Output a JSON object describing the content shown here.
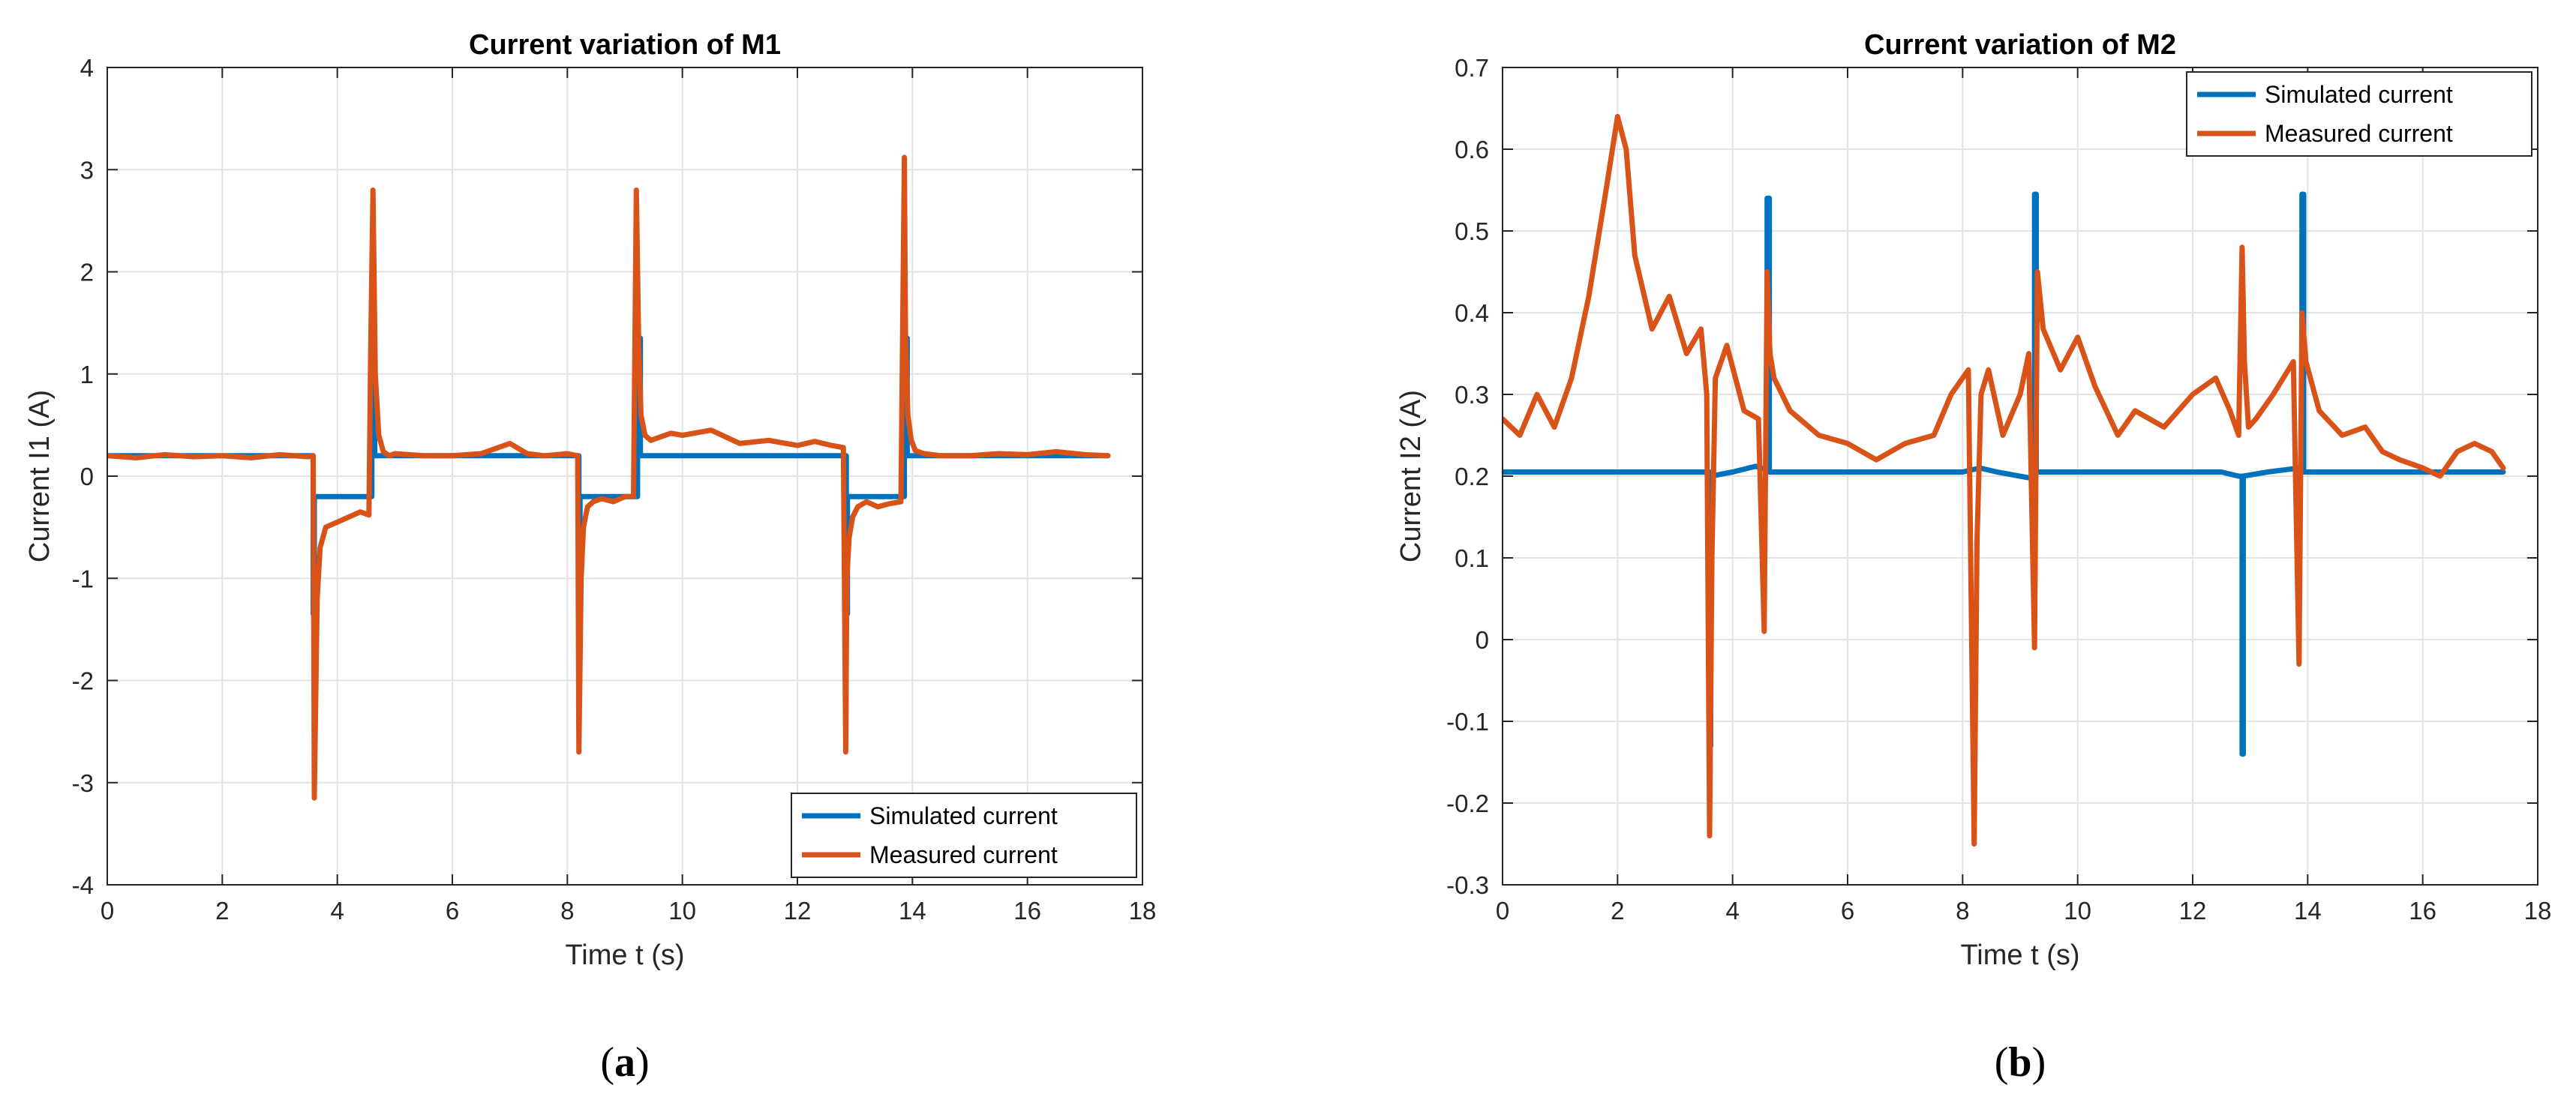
{
  "chart_data": [
    {
      "type": "line",
      "title": "Current variation of M1",
      "xlabel": "Time t (s)",
      "ylabel": "Current I1 (A)",
      "xlim": [
        0,
        18
      ],
      "ylim": [
        -4,
        4
      ],
      "xticks": [
        0,
        2,
        4,
        6,
        8,
        10,
        12,
        14,
        16,
        18
      ],
      "yticks": [
        -4,
        -3,
        -2,
        -1,
        0,
        1,
        2,
        3,
        4
      ],
      "grid": true,
      "legend_position": "bottom-right",
      "caption": "a",
      "series": [
        {
          "name": "Simulated current",
          "color": "#0072BD",
          "x": [
            0,
            3.58,
            3.58,
            3.6,
            3.6,
            4.6,
            4.6,
            4.63,
            4.65,
            4.65,
            8.2,
            8.2,
            8.22,
            8.22,
            9.22,
            9.22,
            9.25,
            9.27,
            9.27,
            12.85,
            12.85,
            12.87,
            12.87,
            13.86,
            13.86,
            13.89,
            13.91,
            13.91,
            17.4
          ],
          "y": [
            0.2,
            0.2,
            -1.35,
            -1.35,
            -0.2,
            -0.2,
            0.2,
            1.35,
            1.35,
            0.2,
            0.2,
            -1.35,
            -1.35,
            -0.2,
            -0.2,
            0.2,
            1.35,
            1.35,
            0.2,
            0.2,
            -1.35,
            -1.35,
            -0.2,
            -0.2,
            0.2,
            1.35,
            1.35,
            0.2,
            0.2
          ]
        },
        {
          "name": "Measured current",
          "color": "#D95319",
          "x": [
            0,
            0.5,
            1.0,
            1.5,
            2.0,
            2.5,
            3.0,
            3.5,
            3.58,
            3.6,
            3.65,
            3.7,
            3.8,
            4.0,
            4.2,
            4.4,
            4.55,
            4.58,
            4.62,
            4.66,
            4.72,
            4.8,
            4.9,
            5.0,
            5.5,
            6.0,
            6.5,
            7.0,
            7.3,
            7.6,
            8.0,
            8.18,
            8.2,
            8.24,
            8.28,
            8.35,
            8.45,
            8.6,
            8.8,
            9.0,
            9.15,
            9.2,
            9.24,
            9.28,
            9.35,
            9.45,
            9.6,
            9.8,
            10.0,
            10.5,
            11.0,
            11.5,
            12.0,
            12.3,
            12.6,
            12.8,
            12.84,
            12.86,
            12.9,
            12.96,
            13.05,
            13.2,
            13.4,
            13.6,
            13.8,
            13.86,
            13.88,
            13.92,
            13.98,
            14.05,
            14.2,
            14.5,
            15.0,
            15.5,
            16.0,
            16.5,
            17.0,
            17.4
          ],
          "y": [
            0.2,
            0.18,
            0.21,
            0.19,
            0.2,
            0.18,
            0.21,
            0.19,
            0.2,
            -3.15,
            -1.2,
            -0.7,
            -0.5,
            -0.45,
            -0.4,
            -0.35,
            -0.38,
            1.2,
            2.8,
            1.0,
            0.4,
            0.24,
            0.2,
            0.22,
            0.2,
            0.2,
            0.22,
            0.32,
            0.22,
            0.2,
            0.22,
            0.2,
            -2.7,
            -1.0,
            -0.5,
            -0.3,
            -0.25,
            -0.22,
            -0.25,
            -0.2,
            -0.2,
            2.8,
            1.3,
            0.6,
            0.4,
            0.35,
            0.38,
            0.42,
            0.4,
            0.45,
            0.32,
            0.35,
            0.3,
            0.34,
            0.3,
            0.28,
            -2.7,
            -1.0,
            -0.6,
            -0.4,
            -0.3,
            -0.25,
            -0.3,
            -0.27,
            -0.25,
            3.12,
            1.4,
            0.6,
            0.35,
            0.25,
            0.22,
            0.2,
            0.2,
            0.22,
            0.21,
            0.24,
            0.21,
            0.2
          ]
        }
      ]
    },
    {
      "type": "line",
      "title": "Current variation of M2",
      "xlabel": "Time t (s)",
      "ylabel": "Current I2 (A)",
      "xlim": [
        0,
        18
      ],
      "ylim": [
        -0.3,
        0.7
      ],
      "xticks": [
        0,
        2,
        4,
        6,
        8,
        10,
        12,
        14,
        16,
        18
      ],
      "yticks": [
        -0.3,
        -0.2,
        -0.1,
        0,
        0.1,
        0.2,
        0.3,
        0.4,
        0.5,
        0.6,
        0.7
      ],
      "grid": true,
      "legend_position": "top-right",
      "caption": "b",
      "series": [
        {
          "name": "Simulated current",
          "color": "#0072BD",
          "x": [
            0,
            3.55,
            3.6,
            3.6,
            3.62,
            3.62,
            4.0,
            4.4,
            4.58,
            4.6,
            4.6,
            4.64,
            4.64,
            4.7,
            8.0,
            8.3,
            8.6,
            9.15,
            9.25,
            9.25,
            9.28,
            9.28,
            9.35,
            12.5,
            12.8,
            12.86,
            12.86,
            12.88,
            12.88,
            13.3,
            13.85,
            13.9,
            13.9,
            13.93,
            13.93,
            14.0,
            17.4
          ],
          "y": [
            0.205,
            0.205,
            0.205,
            -0.13,
            -0.13,
            0.2,
            0.205,
            0.212,
            0.208,
            0.208,
            0.54,
            0.54,
            0.205,
            0.205,
            0.205,
            0.21,
            0.205,
            0.198,
            0.198,
            0.545,
            0.545,
            0.205,
            0.205,
            0.205,
            0.2,
            0.2,
            -0.14,
            -0.14,
            0.2,
            0.205,
            0.21,
            0.21,
            0.545,
            0.545,
            0.205,
            0.205,
            0.205
          ]
        },
        {
          "name": "Measured current",
          "color": "#D95319",
          "x": [
            0,
            0.3,
            0.6,
            0.9,
            1.2,
            1.5,
            1.8,
            2.0,
            2.15,
            2.3,
            2.6,
            2.9,
            3.2,
            3.45,
            3.55,
            3.6,
            3.64,
            3.7,
            3.9,
            4.2,
            4.45,
            4.55,
            4.6,
            4.65,
            4.72,
            5.0,
            5.5,
            6.0,
            6.5,
            7.0,
            7.5,
            7.8,
            8.1,
            8.2,
            8.25,
            8.32,
            8.45,
            8.7,
            9.0,
            9.15,
            9.25,
            9.3,
            9.4,
            9.7,
            10.0,
            10.3,
            10.7,
            11.0,
            11.5,
            12.0,
            12.4,
            12.65,
            12.8,
            12.86,
            12.9,
            12.97,
            13.1,
            13.4,
            13.75,
            13.85,
            13.9,
            13.97,
            14.2,
            14.6,
            15.0,
            15.3,
            15.6,
            16.0,
            16.3,
            16.6,
            16.9,
            17.2,
            17.4
          ],
          "y": [
            0.27,
            0.25,
            0.3,
            0.26,
            0.32,
            0.42,
            0.55,
            0.64,
            0.6,
            0.47,
            0.38,
            0.42,
            0.35,
            0.38,
            0.3,
            -0.24,
            0.1,
            0.32,
            0.36,
            0.28,
            0.27,
            0.01,
            0.45,
            0.35,
            0.32,
            0.28,
            0.25,
            0.24,
            0.22,
            0.24,
            0.25,
            0.3,
            0.33,
            -0.25,
            0.12,
            0.3,
            0.33,
            0.25,
            0.3,
            0.35,
            -0.01,
            0.45,
            0.38,
            0.33,
            0.37,
            0.31,
            0.25,
            0.28,
            0.26,
            0.3,
            0.32,
            0.28,
            0.25,
            0.48,
            0.34,
            0.26,
            0.27,
            0.3,
            0.34,
            -0.03,
            0.4,
            0.34,
            0.28,
            0.25,
            0.26,
            0.23,
            0.22,
            0.21,
            0.2,
            0.23,
            0.24,
            0.23,
            0.21
          ]
        }
      ]
    }
  ]
}
